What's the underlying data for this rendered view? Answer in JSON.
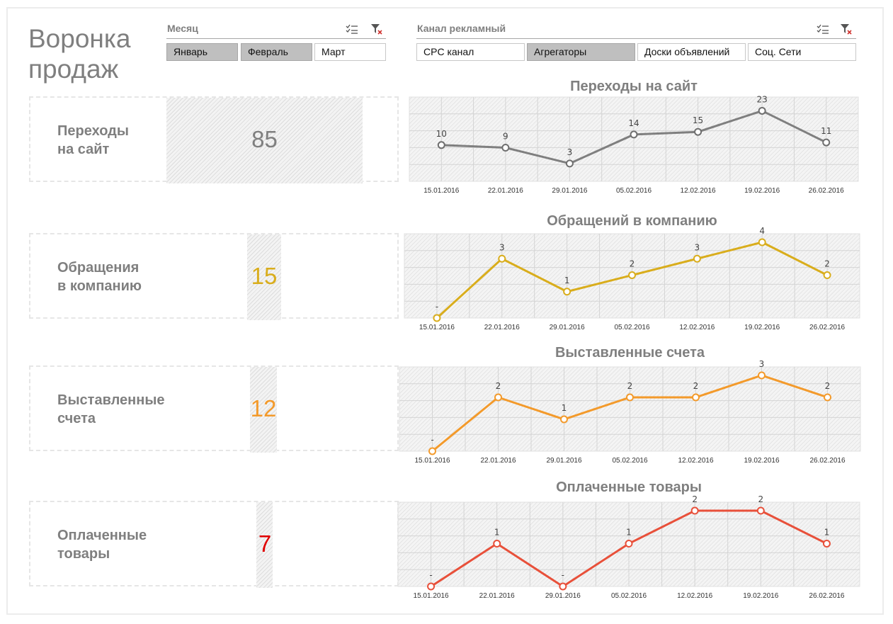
{
  "title": "Воронка\nпродаж",
  "month_slicer": {
    "caption": "Месяц",
    "items": [
      {
        "label": "Январь",
        "selected": true
      },
      {
        "label": "Февраль",
        "selected": true
      },
      {
        "label": "Март",
        "selected": false
      }
    ],
    "multiselect_icon": "multiselect-icon",
    "clear_filter_icon": "clear-filter-icon"
  },
  "channel_slicer": {
    "caption": "Канал рекламный",
    "items": [
      {
        "label": "CPC канал",
        "selected": false
      },
      {
        "label": "Агрегаторы",
        "selected": true
      },
      {
        "label": "Доски объявлений",
        "selected": false
      },
      {
        "label": "Соц. Сети",
        "selected": false
      }
    ],
    "multiselect_icon": "multiselect-icon",
    "clear_filter_icon": "clear-filter-icon"
  },
  "colors": {
    "gray": "#7f7f7f",
    "yellow": "#d9ad1c",
    "orange": "#f39a2b",
    "red": "#e8503a",
    "red_value": "#e00000"
  },
  "kpis": [
    {
      "label": "Переходы\nна сайт",
      "value": "85",
      "value_color": "#7f7f7f",
      "share": 1.0
    },
    {
      "label": "Обращения\nв компанию",
      "value": "15",
      "value_color": "#d9ad1c",
      "share": 0.176
    },
    {
      "label": "Выставленные\nсчета",
      "value": "12",
      "value_color": "#f39a2b",
      "share": 0.141
    },
    {
      "label": "Оплаченные\nтовары",
      "value": "7",
      "value_color": "#e00000",
      "share": 0.082
    }
  ],
  "chart_data": [
    {
      "type": "line",
      "title": "Переходы на сайт",
      "x": [
        "15.01.2016",
        "22.01.2016",
        "29.01.2016",
        "05.02.2016",
        "12.02.2016",
        "19.02.2016",
        "26.02.2016"
      ],
      "values": [
        10,
        9,
        3,
        14,
        15,
        23,
        11
      ],
      "labels": [
        "10",
        "9",
        "3",
        "14",
        "15",
        "23",
        "11"
      ],
      "ylim": [
        0,
        25
      ],
      "color": "#7f7f7f",
      "marker": "filled",
      "grid": true
    },
    {
      "type": "line",
      "title": "Обращений в компанию",
      "x": [
        "15.01.2016",
        "22.01.2016",
        "29.01.2016",
        "05.02.2016",
        "12.02.2016",
        "19.02.2016",
        "26.02.2016"
      ],
      "values": [
        0,
        3,
        1,
        2,
        3,
        4,
        2
      ],
      "labels": [
        "-",
        "3",
        "1",
        "2",
        "3",
        "4",
        "2"
      ],
      "ylim": [
        0,
        4
      ],
      "color": "#d9ad1c",
      "marker": "hollow",
      "grid": true
    },
    {
      "type": "line",
      "title": "Выставленные счета",
      "x": [
        "15.01.2016",
        "22.01.2016",
        "29.01.2016",
        "05.02.2016",
        "12.02.2016",
        "19.02.2016",
        "26.02.2016"
      ],
      "values": [
        0,
        2,
        1,
        2,
        2,
        3,
        2
      ],
      "labels": [
        "-",
        "2",
        "1",
        "2",
        "2",
        "3",
        "2"
      ],
      "ylim": [
        0,
        3
      ],
      "color": "#f39a2b",
      "marker": "hollow",
      "grid": true
    },
    {
      "type": "line",
      "title": "Оплаченные товары",
      "x": [
        "15.01.2016",
        "22.01.2016",
        "29.01.2016",
        "05.02.2016",
        "12.02.2016",
        "19.02.2016",
        "26.02.2016"
      ],
      "values": [
        0,
        1,
        0,
        1,
        2,
        2,
        1
      ],
      "labels": [
        "-",
        "1",
        "-",
        "1",
        "2",
        "2",
        "1"
      ],
      "ylim": [
        0,
        2
      ],
      "color": "#e8503a",
      "marker": "hollow",
      "grid": true
    }
  ]
}
